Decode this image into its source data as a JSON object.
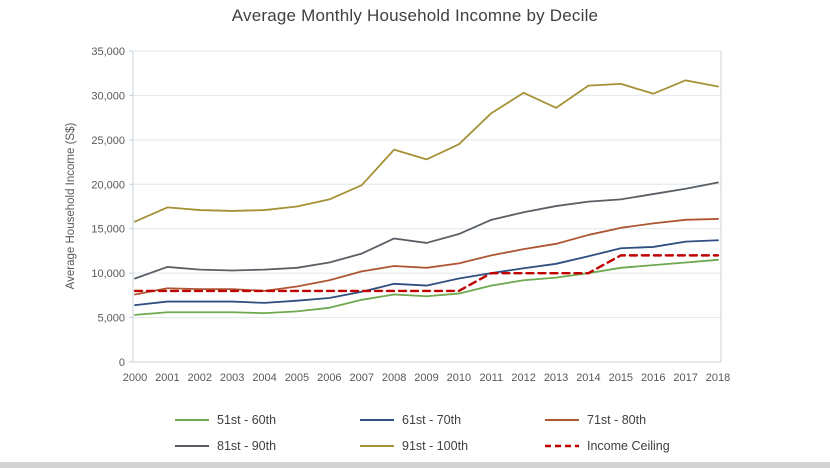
{
  "chart_data": {
    "type": "line",
    "title": "Average Monthly Household Incomne by Decile",
    "ylabel": "Average Household Income (S$)",
    "xlabel": "",
    "x": [
      2000,
      2001,
      2002,
      2003,
      2004,
      2005,
      2006,
      2007,
      2008,
      2009,
      2010,
      2011,
      2012,
      2013,
      2014,
      2015,
      2016,
      2017,
      2018
    ],
    "ylim": [
      0,
      35000
    ],
    "ytick_step": 5000,
    "grid": true,
    "legend_position": "bottom",
    "colors": {
      "grid": "#e1e7ec",
      "axis": "#c6d0da",
      "tick_text": "#595959",
      "title_text": "#404040"
    },
    "series": [
      {
        "name": "51st - 60th",
        "color": "#6EA84F",
        "dash": "solid",
        "values": [
          5300,
          5600,
          5600,
          5600,
          5500,
          5700,
          6100,
          7000,
          7600,
          7400,
          7700,
          8600,
          9200,
          9500,
          10000,
          10600,
          10900,
          11200,
          11500
        ]
      },
      {
        "name": "61st - 70th",
        "color": "#2E4F80",
        "dash": "solid",
        "values": [
          6400,
          6800,
          6800,
          6800,
          6650,
          6900,
          7200,
          7900,
          8800,
          8600,
          9400,
          10000,
          10550,
          11050,
          11900,
          12800,
          12950,
          13550,
          13700
        ]
      },
      {
        "name": "71st - 80th",
        "color": "#AE5633",
        "dash": "solid",
        "values": [
          7600,
          8300,
          8200,
          8200,
          8000,
          8500,
          9200,
          10200,
          10800,
          10600,
          11100,
          12000,
          12700,
          13300,
          14300,
          15100,
          15600,
          16000,
          16100
        ]
      },
      {
        "name": "81st - 90th",
        "color": "#5A5F66",
        "dash": "solid",
        "values": [
          9400,
          10700,
          10400,
          10300,
          10400,
          10600,
          11200,
          12200,
          13900,
          13400,
          14400,
          16000,
          16850,
          17550,
          18050,
          18300,
          18900,
          19500,
          20200
        ]
      },
      {
        "name": "91st - 100th",
        "color": "#A59136",
        "dash": "solid",
        "values": [
          15800,
          17400,
          17100,
          17000,
          17100,
          17500,
          18300,
          19900,
          23900,
          22800,
          24500,
          28000,
          30300,
          28600,
          31100,
          31300,
          30200,
          31700,
          31000
        ]
      },
      {
        "name": "Income Ceiling",
        "color": "#C00000",
        "dash": "dashed",
        "values": [
          8000,
          8000,
          8000,
          8000,
          8000,
          8000,
          8000,
          8000,
          8000,
          8000,
          8000,
          10000,
          10000,
          10000,
          10000,
          12000,
          12000,
          12000,
          12000
        ]
      }
    ]
  }
}
